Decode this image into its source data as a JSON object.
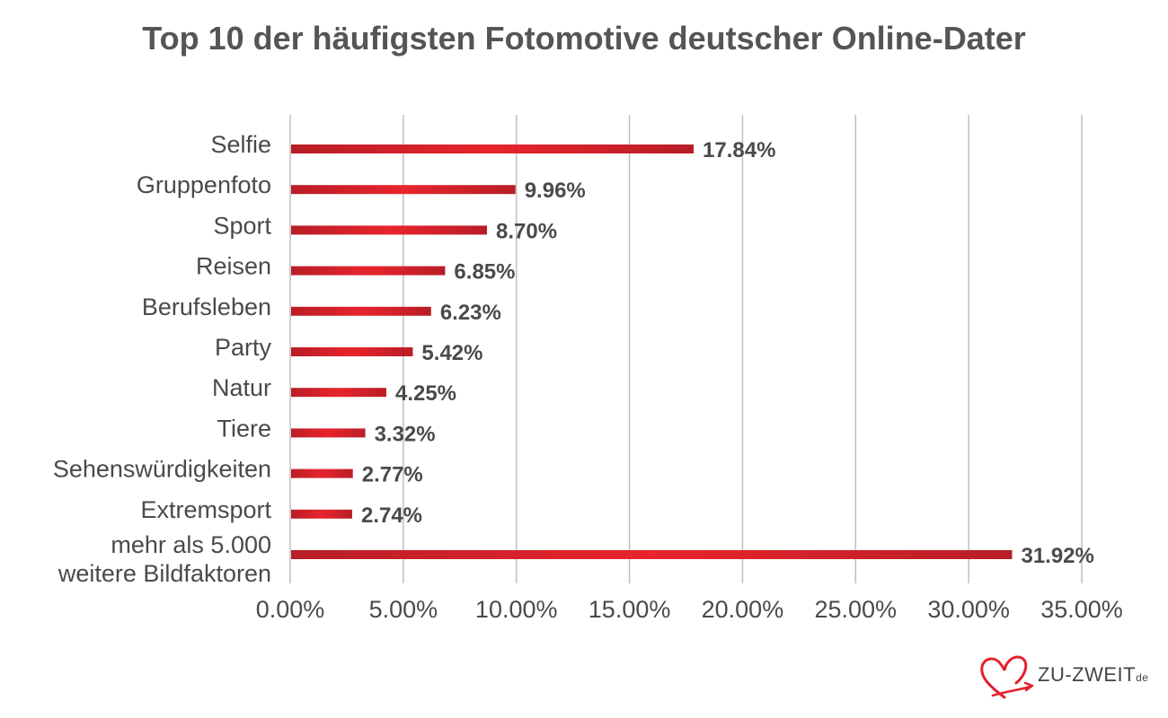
{
  "chart_data": {
    "type": "bar",
    "orientation": "horizontal",
    "title": "Top 10 der häufigsten Fotomotive deutscher Online-Dater",
    "categories": [
      [
        "Selfie"
      ],
      [
        "Gruppenfoto"
      ],
      [
        "Sport"
      ],
      [
        "Reisen"
      ],
      [
        "Berufsleben"
      ],
      [
        "Party"
      ],
      [
        "Natur"
      ],
      [
        "Tiere"
      ],
      [
        "Sehenswürdigkeiten"
      ],
      [
        "Extremsport"
      ],
      [
        "mehr als 5.000",
        "weitere Bildfaktoren"
      ]
    ],
    "values": [
      17.84,
      9.96,
      8.7,
      6.85,
      6.23,
      5.42,
      4.25,
      3.32,
      2.77,
      2.74,
      31.92
    ],
    "data_labels": [
      "17.84%",
      "9.96%",
      "8.70%",
      "6.85%",
      "6.23%",
      "5.42%",
      "4.25%",
      "3.32%",
      "2.77%",
      "2.74%",
      "31.92%"
    ],
    "x_ticks": [
      0,
      5,
      10,
      15,
      20,
      25,
      30,
      35
    ],
    "x_tick_labels": [
      "0.00%",
      "5.00%",
      "10.00%",
      "15.00%",
      "20.00%",
      "25.00%",
      "30.00%",
      "35.00%"
    ],
    "xlim": [
      0,
      35
    ],
    "grid": "vertical",
    "legend": "none",
    "bar_color": "#d9232d",
    "gridline_color": "#bfbfbf",
    "text_color": "#4a4a4a"
  },
  "logo": {
    "text": "ZU-ZWEIT",
    "suffix": "de",
    "icon": "heart-arrow-icon",
    "color": "#e2222b"
  }
}
